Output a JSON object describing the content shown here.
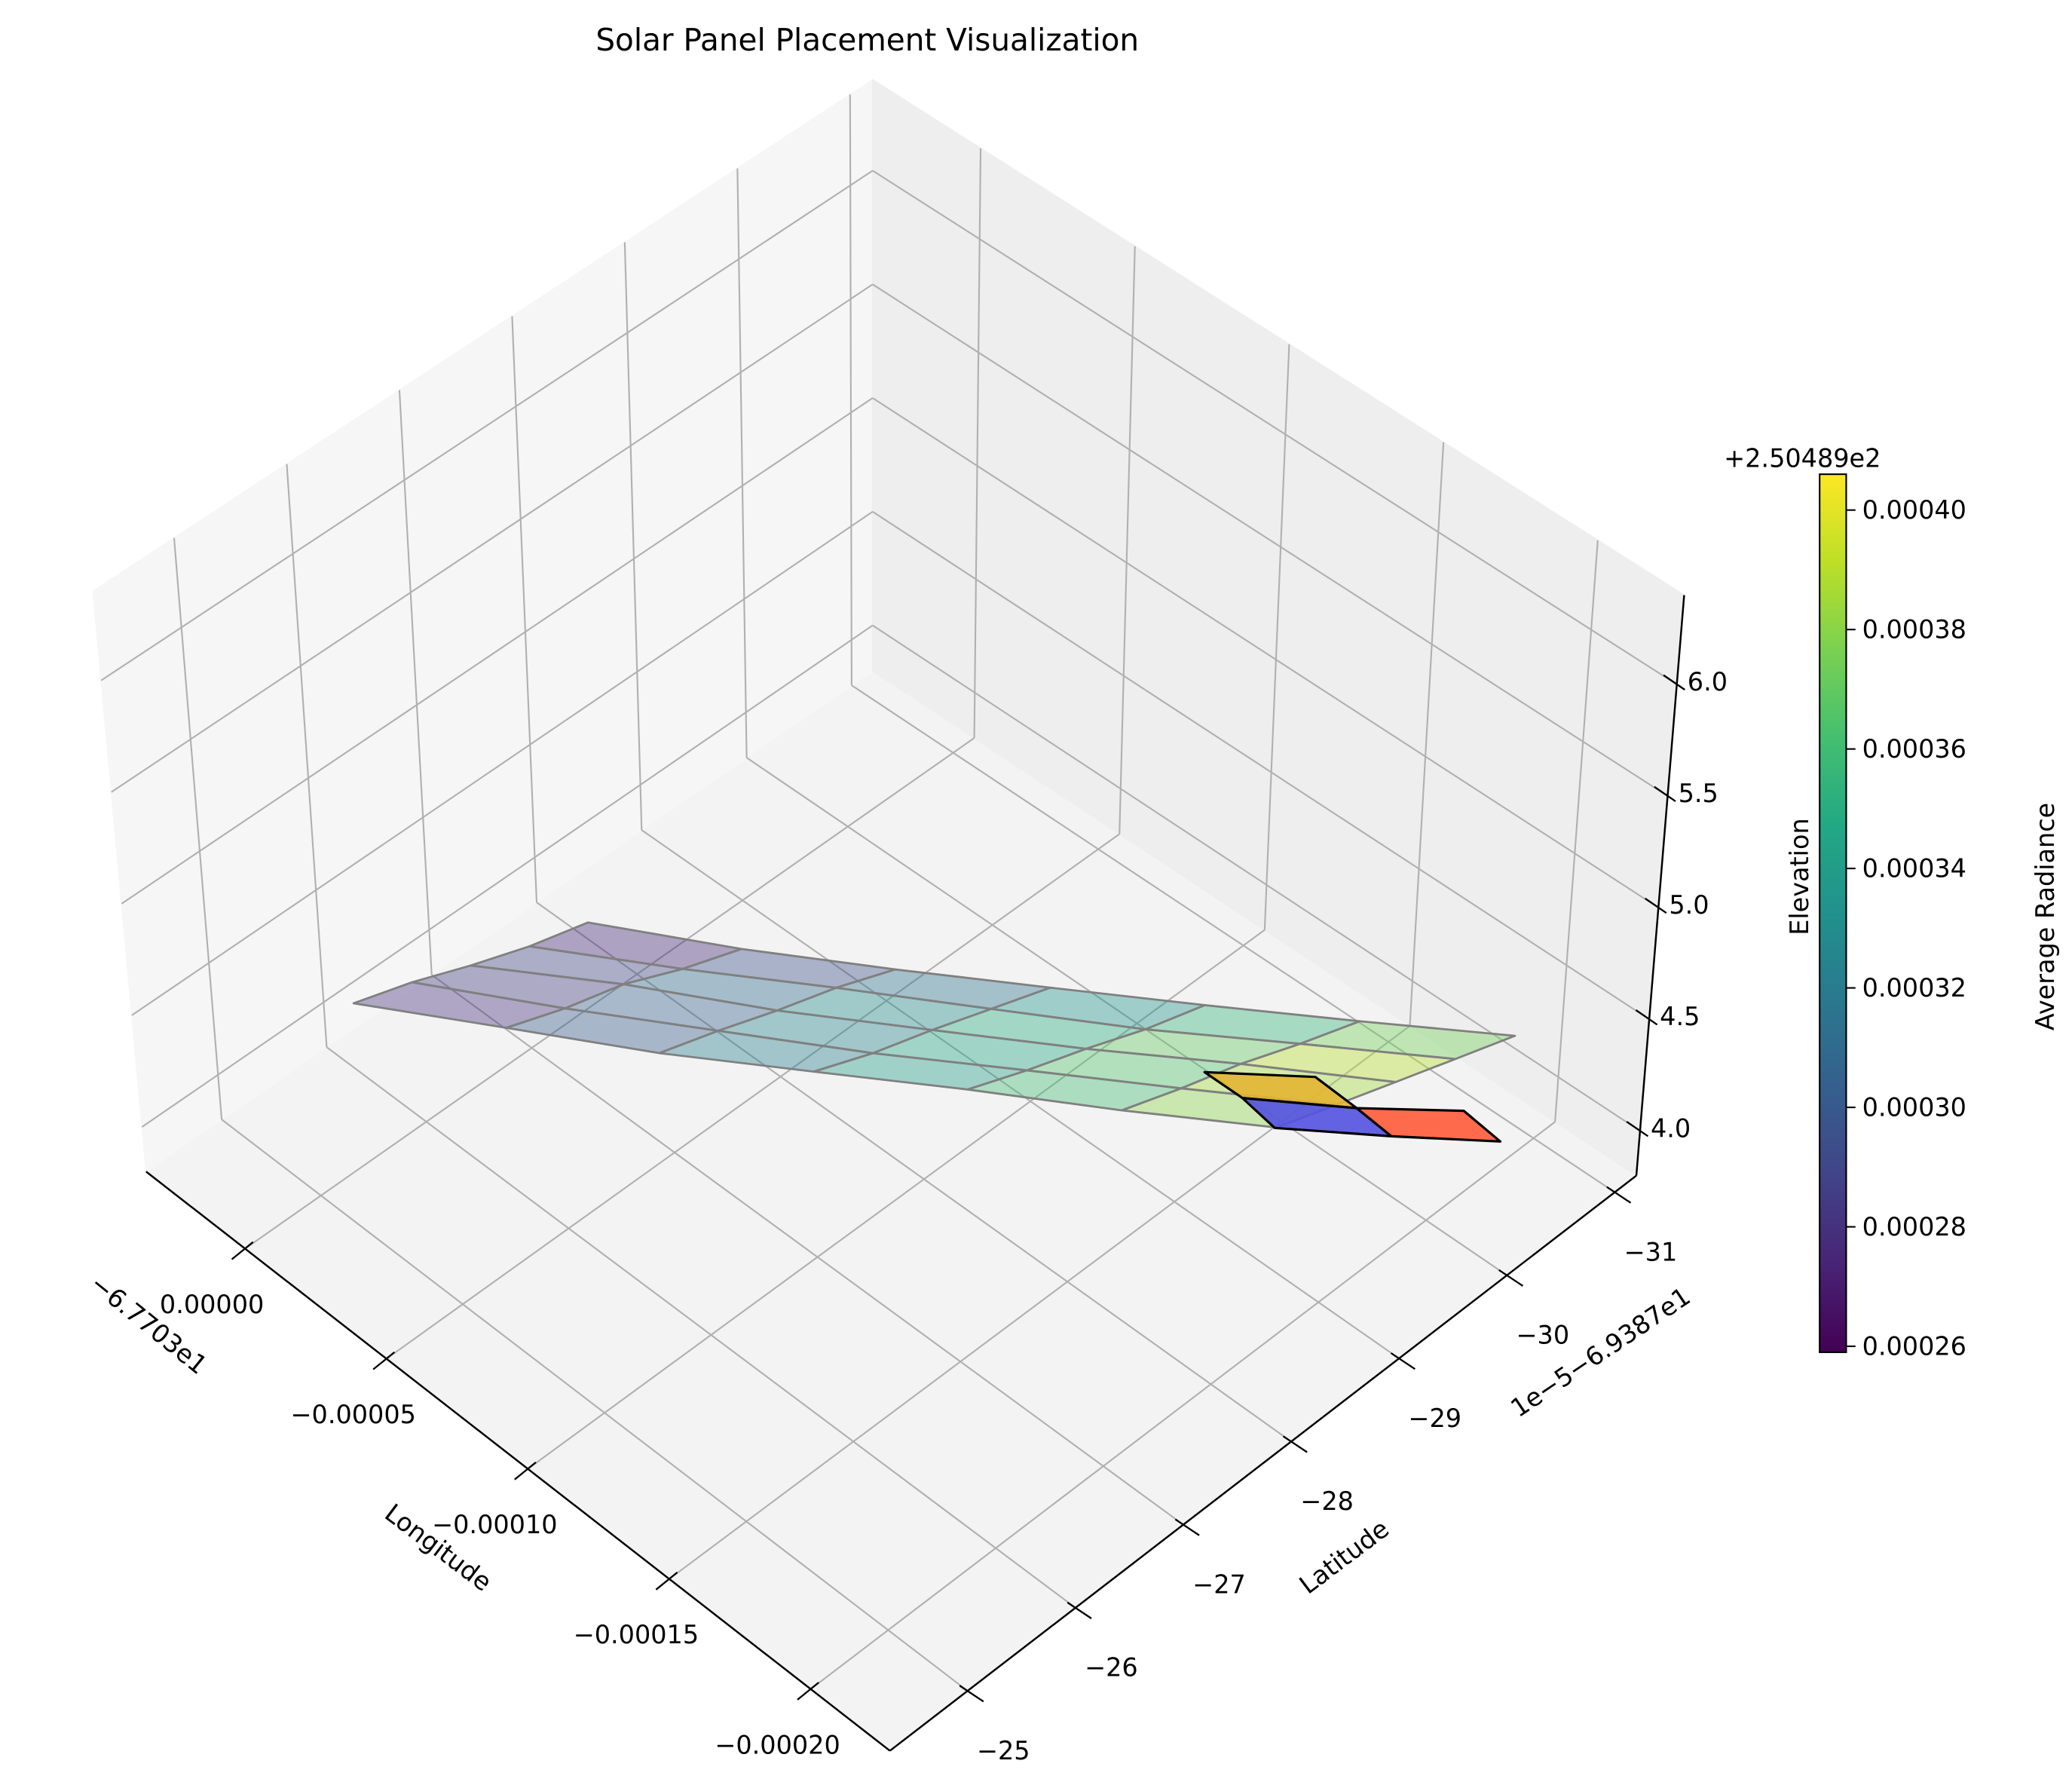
{
  "chart_data": {
    "type": "surface3d",
    "title": "Solar Panel Placement Visualization",
    "xlabel": "Longitude",
    "ylabel": "Latitude",
    "zlabel": "Elevation",
    "colorbar_label": "Average Radiance",
    "x_offset": "−6.7703e1",
    "y_offset": "1e−5−6.9387e1",
    "z_offset": "+2.50489e2",
    "xlim": [
      -0.000228,
      3.5e-05
    ],
    "ylim": [
      -31.2,
      -24.28
    ],
    "zlim": [
      3.8,
      6.4
    ],
    "xticks": [
      {
        "value": 0,
        "label": "0.00000"
      },
      {
        "value": -5e-05,
        "label": "−0.00005"
      },
      {
        "value": -0.0001,
        "label": "−0.00010"
      },
      {
        "value": -0.00015,
        "label": "−0.00015"
      },
      {
        "value": -0.0002,
        "label": "−0.00020"
      }
    ],
    "yticks": [
      {
        "value": -25,
        "label": "−25"
      },
      {
        "value": -26,
        "label": "−26"
      },
      {
        "value": -27,
        "label": "−27"
      },
      {
        "value": -28,
        "label": "−28"
      },
      {
        "value": -29,
        "label": "−29"
      },
      {
        "value": -30,
        "label": "−30"
      },
      {
        "value": -31,
        "label": "−31"
      }
    ],
    "zticks": [
      {
        "value": 4,
        "label": "4.0"
      },
      {
        "value": 4.5,
        "label": "4.5"
      },
      {
        "value": 5,
        "label": "5.0"
      },
      {
        "value": 5.5,
        "label": "5.5"
      },
      {
        "value": 6,
        "label": "6.0"
      }
    ],
    "grid": true,
    "cmap": "viridis",
    "alpha": 0.4,
    "clim": [
      0.000259,
      0.000406
    ],
    "cticks": [
      {
        "value": 0.00026,
        "label": "0.00026"
      },
      {
        "value": 0.00028,
        "label": "0.00028"
      },
      {
        "value": 0.0003,
        "label": "0.00030"
      },
      {
        "value": 0.00032,
        "label": "0.00032"
      },
      {
        "value": 0.00034,
        "label": "0.00034"
      },
      {
        "value": 0.00036,
        "label": "0.00036"
      },
      {
        "value": 0.00038,
        "label": "0.00038"
      },
      {
        "value": 0.0004,
        "label": "0.00040"
      }
    ],
    "surface": {
      "lon": [
        [
          2.4e-05,
          -7.7e-06,
          -3.94e-05,
          -7.11e-05,
          -0.0001028,
          -0.0001345,
          -0.0001662
        ],
        [
          1.875e-05,
          -1.295e-05,
          -4.465e-05,
          -7.635e-05,
          -0.00010805,
          -0.00013975,
          -0.00017145
        ],
        [
          1.35e-05,
          -1.82e-05,
          -4.99e-05,
          -8.16e-05,
          -0.0001133,
          -0.000145,
          -0.0001767
        ],
        [
          8.25e-06,
          -2.345e-05,
          -5.515e-05,
          -8.685e-05,
          -0.00011855,
          -0.00015025,
          -0.00018195
        ],
        [
          3e-06,
          -2.87e-05,
          -6.04e-05,
          -9.21e-05,
          -0.0001238,
          -0.0001555,
          -0.0001872
        ]
      ],
      "lat": [
        [
          -26.0,
          -26.58,
          -27.16,
          -27.75,
          -28.33,
          -28.91,
          -29.49
        ],
        [
          -26.41,
          -26.99,
          -27.57,
          -28.16,
          -28.74,
          -29.32,
          -29.9
        ],
        [
          -26.82,
          -27.4,
          -27.98,
          -28.57,
          -29.15,
          -29.73,
          -30.31
        ],
        [
          -27.23,
          -27.81,
          -28.39,
          -28.98,
          -29.56,
          -30.14,
          -30.72
        ],
        [
          -27.64,
          -28.22,
          -28.8,
          -29.39,
          -29.97,
          -30.55,
          -31.13
        ]
      ],
      "elevation": [
        [
          4.1,
          4.1,
          4.09,
          4.1,
          4.11,
          4.1,
          4.1
        ],
        [
          4.11,
          4.1,
          4.1,
          4.09,
          4.1,
          4.1,
          4.1
        ],
        [
          4.1,
          4.12,
          4.1,
          4.1,
          4.1,
          4.11,
          4.1
        ],
        [
          4.1,
          4.1,
          4.11,
          4.1,
          4.09,
          4.1,
          4.1
        ],
        [
          4.12,
          4.1,
          4.1,
          4.1,
          4.1,
          4.1,
          4.1
        ]
      ],
      "radiance": [
        [
          0.00028,
          0.0003,
          0.00032,
          0.00034,
          0.00036,
          0.00038
        ],
        [
          0.000285,
          0.000305,
          0.000325,
          0.000345,
          0.000365,
          0.000385
        ],
        [
          0.00029,
          0.00031,
          0.00033,
          0.00035,
          0.00037,
          0.00039
        ],
        [
          0.000275,
          0.000295,
          0.000315,
          0.000335,
          0.000355,
          0.000375
        ]
      ]
    },
    "panels": [
      {
        "lon": [
          -0.00014,
          -0.000161,
          -0.000176,
          -0.000153
        ],
        "lat": [
          -29.53,
          -29.99,
          -29.97,
          -29.53
        ],
        "elevation": 4.1,
        "color": "#e3b531"
      },
      {
        "lon": [
          -0.000153,
          -0.000176,
          -0.000189,
          -0.000166
        ],
        "lat": [
          -29.53,
          -29.97,
          -29.94,
          -29.48
        ],
        "elevation": 4.1,
        "color": "#5252e0"
      },
      {
        "lon": [
          -0.000176,
          -0.000196,
          -0.00021,
          -0.000189
        ],
        "lat": [
          -29.97,
          -30.42,
          -30.38,
          -29.94
        ],
        "elevation": 4.1,
        "color": "#ff5b3a"
      }
    ]
  }
}
